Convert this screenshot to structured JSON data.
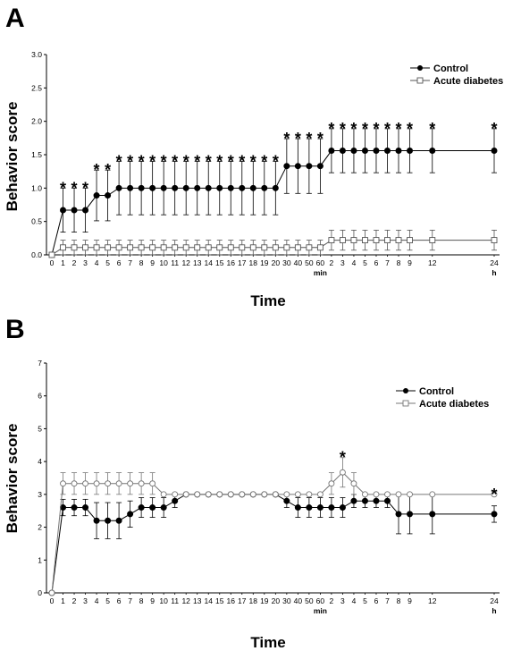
{
  "chart_data": [
    {
      "type": "line",
      "panel": "A",
      "ylabel": "Behavior score",
      "xlabel": "Time",
      "ylim": [
        0,
        3.0
      ],
      "yticks": [
        "0.0",
        "0.5",
        "1.0",
        "1.5",
        "2.0",
        "2.5",
        "3.0"
      ],
      "categories": [
        "0",
        "1",
        "2",
        "3",
        "4",
        "5",
        "6",
        "7",
        "8",
        "9",
        "10",
        "11",
        "12",
        "13",
        "14",
        "15",
        "16",
        "17",
        "18",
        "19",
        "20",
        "30",
        "40",
        "50",
        "60",
        "2",
        "3",
        "4",
        "5",
        "6",
        "7",
        "8",
        "9",
        "12",
        "24"
      ],
      "unit_labels": [
        {
          "after": "60",
          "text": "min"
        },
        {
          "after": "24",
          "text": "h"
        }
      ],
      "legend_position": "top-right",
      "series": [
        {
          "name": "Control",
          "marker": "filled-circle",
          "values": [
            0,
            0.67,
            0.67,
            0.67,
            0.89,
            0.89,
            1.0,
            1.0,
            1.0,
            1.0,
            1.0,
            1.0,
            1.0,
            1.0,
            1.0,
            1.0,
            1.0,
            1.0,
            1.0,
            1.0,
            1.0,
            1.33,
            1.33,
            1.33,
            1.33,
            1.56,
            1.56,
            1.56,
            1.56,
            1.56,
            1.56,
            1.56,
            1.56,
            1.56,
            1.56
          ],
          "errors": [
            0,
            0.33,
            0.33,
            0.33,
            0.38,
            0.38,
            0.4,
            0.4,
            0.4,
            0.4,
            0.4,
            0.4,
            0.4,
            0.4,
            0.4,
            0.4,
            0.4,
            0.4,
            0.4,
            0.4,
            0.4,
            0.41,
            0.41,
            0.41,
            0.41,
            0.33,
            0.33,
            0.33,
            0.33,
            0.33,
            0.33,
            0.33,
            0.33,
            0.33,
            0.33
          ]
        },
        {
          "name": "Acute diabetes",
          "marker": "open-square",
          "values": [
            0,
            0.11,
            0.11,
            0.11,
            0.11,
            0.11,
            0.11,
            0.11,
            0.11,
            0.11,
            0.11,
            0.11,
            0.11,
            0.11,
            0.11,
            0.11,
            0.11,
            0.11,
            0.11,
            0.11,
            0.11,
            0.11,
            0.11,
            0.11,
            0.11,
            0.22,
            0.22,
            0.22,
            0.22,
            0.22,
            0.22,
            0.22,
            0.22,
            0.22,
            0.22
          ],
          "errors": [
            0,
            0.11,
            0.11,
            0.11,
            0.11,
            0.11,
            0.11,
            0.11,
            0.11,
            0.11,
            0.11,
            0.11,
            0.11,
            0.11,
            0.11,
            0.11,
            0.11,
            0.11,
            0.11,
            0.11,
            0.11,
            0.11,
            0.11,
            0.11,
            0.11,
            0.15,
            0.15,
            0.15,
            0.15,
            0.15,
            0.15,
            0.15,
            0.15,
            0.15,
            0.15
          ]
        }
      ],
      "annotations": [
        {
          "x": "1",
          "text": "*"
        },
        {
          "x": "2",
          "text": "*"
        },
        {
          "x": "3",
          "text": "*"
        },
        {
          "x": "4",
          "text": "*"
        },
        {
          "x": "5",
          "text": "*"
        },
        {
          "x": "6",
          "text": "*"
        },
        {
          "x": "7",
          "text": "*"
        },
        {
          "x": "8",
          "text": "*"
        },
        {
          "x": "9",
          "text": "*"
        },
        {
          "x": "10",
          "text": "*"
        },
        {
          "x": "11",
          "text": "*"
        },
        {
          "x": "12",
          "text": "*"
        },
        {
          "x": "13",
          "text": "*"
        },
        {
          "x": "14",
          "text": "*"
        },
        {
          "x": "15",
          "text": "*"
        },
        {
          "x": "16",
          "text": "*"
        },
        {
          "x": "17",
          "text": "*"
        },
        {
          "x": "18",
          "text": "*"
        },
        {
          "x": "19",
          "text": "*"
        },
        {
          "x": "20",
          "text": "*"
        },
        {
          "x": "30",
          "text": "*"
        },
        {
          "x": "40",
          "text": "*"
        },
        {
          "x": "50",
          "text": "*"
        },
        {
          "x": "60",
          "text": "*"
        },
        {
          "x": "2h",
          "text": "*"
        },
        {
          "x": "3h",
          "text": "*"
        },
        {
          "x": "4h",
          "text": "*"
        },
        {
          "x": "5h",
          "text": "*"
        },
        {
          "x": "6h",
          "text": "*"
        },
        {
          "x": "7h",
          "text": "*"
        },
        {
          "x": "8h",
          "text": "*"
        },
        {
          "x": "9h",
          "text": "*"
        },
        {
          "x": "12h",
          "text": "*"
        },
        {
          "x": "24h",
          "text": "*"
        }
      ]
    },
    {
      "type": "line",
      "panel": "B",
      "ylabel": "Behavior score",
      "xlabel": "Time",
      "ylim": [
        0,
        7
      ],
      "yticks": [
        "0",
        "1",
        "2",
        "3",
        "4",
        "5",
        "6",
        "7"
      ],
      "categories": [
        "0",
        "1",
        "2",
        "3",
        "4",
        "5",
        "6",
        "7",
        "8",
        "9",
        "10",
        "11",
        "12",
        "13",
        "14",
        "15",
        "16",
        "17",
        "18",
        "19",
        "20",
        "30",
        "40",
        "50",
        "60",
        "2",
        "3",
        "4",
        "5",
        "6",
        "7",
        "8",
        "9",
        "12",
        "24"
      ],
      "unit_labels": [
        {
          "after": "60",
          "text": "min"
        },
        {
          "after": "24",
          "text": "h"
        }
      ],
      "legend_position": "top-right",
      "series": [
        {
          "name": "Control",
          "marker": "filled-circle",
          "values": [
            0,
            2.6,
            2.6,
            2.6,
            2.2,
            2.2,
            2.2,
            2.4,
            2.6,
            2.6,
            2.6,
            2.8,
            3.0,
            3.0,
            3.0,
            3.0,
            3.0,
            3.0,
            3.0,
            3.0,
            3.0,
            2.8,
            2.6,
            2.6,
            2.6,
            2.6,
            2.6,
            2.8,
            2.8,
            2.8,
            2.8,
            2.4,
            2.4,
            2.4,
            2.4
          ],
          "errors": [
            0,
            0.25,
            0.25,
            0.25,
            0.55,
            0.55,
            0.55,
            0.4,
            0.3,
            0.3,
            0.3,
            0.2,
            0,
            0,
            0,
            0,
            0,
            0,
            0,
            0,
            0,
            0.2,
            0.3,
            0.3,
            0.3,
            0.3,
            0.3,
            0.2,
            0.2,
            0.2,
            0.2,
            0.6,
            0.6,
            0.6,
            0.25
          ]
        },
        {
          "name": "Acute diabetes",
          "marker": "open-circle",
          "values": [
            0,
            3.33,
            3.33,
            3.33,
            3.33,
            3.33,
            3.33,
            3.33,
            3.33,
            3.33,
            3.0,
            3.0,
            3.0,
            3.0,
            3.0,
            3.0,
            3.0,
            3.0,
            3.0,
            3.0,
            3.0,
            3.0,
            3.0,
            3.0,
            3.0,
            3.33,
            3.67,
            3.33,
            3.0,
            3.0,
            3.0,
            3.0,
            3.0,
            3.0,
            3.0
          ],
          "errors": [
            0,
            0.33,
            0.33,
            0.33,
            0.33,
            0.33,
            0.33,
            0.33,
            0.33,
            0.33,
            0,
            0,
            0,
            0,
            0,
            0,
            0,
            0,
            0,
            0,
            0,
            0,
            0,
            0,
            0,
            0.33,
            0.45,
            0.33,
            0,
            0,
            0,
            0,
            0,
            0,
            0
          ]
        }
      ],
      "annotations": [
        {
          "x": "3h",
          "text": "*"
        },
        {
          "x": "24h",
          "text": "*"
        }
      ]
    }
  ]
}
